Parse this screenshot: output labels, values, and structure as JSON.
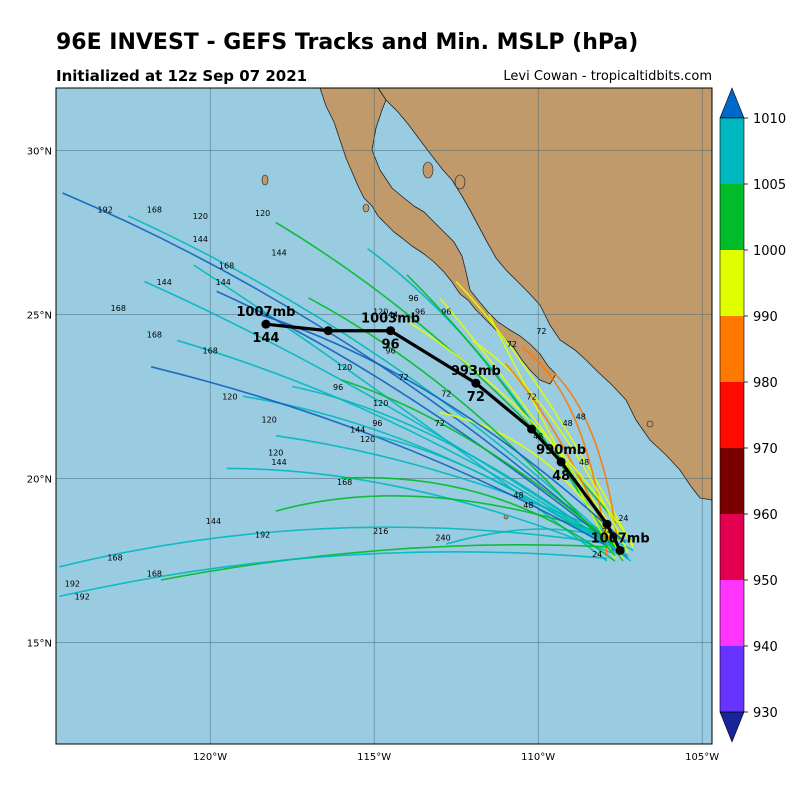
{
  "title": "96E INVEST - GEFS Tracks and Min. MSLP (hPa)",
  "subtitle": "Initialized at 12z Sep 07 2021",
  "credit": "Levi Cowan - tropicaltidbits.com",
  "map": {
    "lon_range": [
      -124.7,
      -104.7
    ],
    "lat_range": [
      11.9,
      31.9
    ],
    "lat_ticks": [
      {
        "v": 30,
        "label": "30°N"
      },
      {
        "v": 25,
        "label": "25°N"
      },
      {
        "v": 20,
        "label": "20°N"
      },
      {
        "v": 15,
        "label": "15°N"
      }
    ],
    "lon_ticks": [
      {
        "v": -120,
        "label": "120°W"
      },
      {
        "v": -115,
        "label": "115°W"
      },
      {
        "v": -110,
        "label": "110°W"
      },
      {
        "v": -105,
        "label": "105°W"
      }
    ],
    "ocean_color": "#99cce0",
    "land_color": "#c09a6b"
  },
  "colorbar": {
    "ticks": [
      "1010",
      "1005",
      "1000",
      "990",
      "980",
      "970",
      "960",
      "950",
      "940",
      "930"
    ],
    "colors": [
      "#00b8bf",
      "#00bb2a",
      "#dfff00",
      "#ff7800",
      "#ff0a00",
      "#7a0000",
      "#e3004f",
      "#ff35ff",
      "#6633ff"
    ],
    "top_arrow_color": "#0068c8",
    "bottom_arrow_color": "#17249a"
  },
  "mean_track": {
    "points": [
      {
        "lon": -107.5,
        "lat": 17.8,
        "label": "1007mb",
        "hour": ""
      },
      {
        "lon": -107.9,
        "lat": 18.6,
        "label": "",
        "hour": ""
      },
      {
        "lon": -109.3,
        "lat": 20.5,
        "label": "990mb",
        "hour": "48"
      },
      {
        "lon": -110.2,
        "lat": 21.5,
        "label": "",
        "hour": ""
      },
      {
        "lon": -111.9,
        "lat": 22.9,
        "label": "993mb",
        "hour": "72"
      },
      {
        "lon": -114.5,
        "lat": 24.5,
        "label": "1003mb",
        "hour": "96"
      },
      {
        "lon": -116.4,
        "lat": 24.5,
        "label": "",
        "hour": ""
      },
      {
        "lon": -118.3,
        "lat": 24.7,
        "label": "1007mb",
        "hour": "144"
      }
    ]
  },
  "hour_labels": [
    "24",
    "48",
    "72",
    "96",
    "120",
    "144",
    "168",
    "192",
    "216",
    "240"
  ],
  "far_labels": [
    {
      "text": "192",
      "lon": -118.4,
      "lat": 18.2
    },
    {
      "text": "216",
      "lon": -114.8,
      "lat": 18.3
    },
    {
      "text": "240",
      "lon": -112.9,
      "lat": 18.1
    },
    {
      "text": "168",
      "lon": -122.9,
      "lat": 17.5
    },
    {
      "text": "168",
      "lon": -121.7,
      "lat": 17.0
    },
    {
      "text": "192",
      "lon": -124.2,
      "lat": 16.7
    },
    {
      "text": "192",
      "lon": -123.9,
      "lat": 16.3
    },
    {
      "text": "144",
      "lon": -119.9,
      "lat": 18.6
    },
    {
      "text": "168",
      "lon": -115.9,
      "lat": 19.8
    },
    {
      "text": "192",
      "lon": -123.2,
      "lat": 28.1
    },
    {
      "text": "168",
      "lon": -121.7,
      "lat": 28.1
    },
    {
      "text": "120",
      "lon": -120.3,
      "lat": 27.9
    },
    {
      "text": "120",
      "lon": -118.4,
      "lat": 28.0
    },
    {
      "text": "144",
      "lon": -120.3,
      "lat": 27.2
    },
    {
      "text": "144",
      "lon": -117.9,
      "lat": 26.8
    },
    {
      "text": "168",
      "lon": -119.5,
      "lat": 26.4
    },
    {
      "text": "144",
      "lon": -121.4,
      "lat": 25.9
    },
    {
      "text": "144",
      "lon": -119.6,
      "lat": 25.9
    },
    {
      "text": "168",
      "lon": -122.8,
      "lat": 25.1
    },
    {
      "text": "168",
      "lon": -121.7,
      "lat": 24.3
    },
    {
      "text": "168",
      "lon": -120.0,
      "lat": 23.8
    },
    {
      "text": "120",
      "lon": -119.4,
      "lat": 22.4
    },
    {
      "text": "120",
      "lon": -118.2,
      "lat": 21.7
    },
    {
      "text": "120",
      "lon": -118.0,
      "lat": 20.7
    },
    {
      "text": "144",
      "lon": -117.9,
      "lat": 20.4
    }
  ],
  "labels_legend": {
    "mean_pressures": [
      "1007mb",
      "990mb",
      "993mb",
      "1003mb",
      "1007mb"
    ]
  }
}
